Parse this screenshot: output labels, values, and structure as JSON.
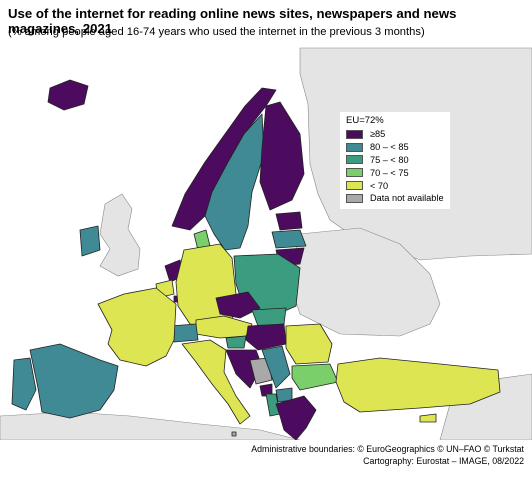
{
  "title": "Use of the internet for reading online news sites, newspapers and news magazines, 2021",
  "subtitle": "(% among people aged 16-74 years who used the internet in the previous 3 months)",
  "legend": {
    "title": "EU=72%",
    "items": [
      {
        "label": "≥85",
        "color": "#4d0b60"
      },
      {
        "label": "80 – < 85",
        "color": "#3f8a94"
      },
      {
        "label": "75 – < 80",
        "color": "#3c9c7f"
      },
      {
        "label": "70 – < 75",
        "color": "#7acf6a"
      },
      {
        "label": "< 70",
        "color": "#dde553"
      },
      {
        "label": "Data not available",
        "color": "#a9a9a9"
      }
    ]
  },
  "colors": {
    "sea": "#ffffff",
    "non_covered_land": "#e4e4e4",
    "border": "#222222"
  },
  "credits": {
    "line1": "Administrative boundaries: © EuroGeographics © UN–FAO © Turkstat",
    "line2": "Cartography: Eurostat – IMAGE, 08/2022"
  }
}
